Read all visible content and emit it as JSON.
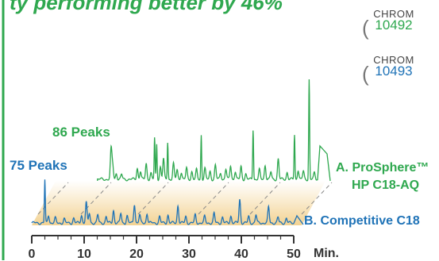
{
  "header": {
    "title_fragment": "ty performing better by 46%"
  },
  "badges": [
    {
      "prefix": "CHROM",
      "number": "10492",
      "color": "#2fa84f"
    },
    {
      "prefix": "CHROM",
      "number": "10493",
      "color": "#1f73b7"
    }
  ],
  "colors": {
    "series_a": "#2fa84f",
    "series_b": "#1f73b7",
    "frame": "#2fa84f",
    "band": "#f2d08c",
    "axis": "#333333"
  },
  "chart_data": {
    "type": "line",
    "title": "",
    "xlabel": "Min.",
    "ylabel": "",
    "xlim": [
      0,
      50
    ],
    "x_ticks": [
      "0",
      "10",
      "20",
      "30",
      "40",
      "50"
    ],
    "grid": false,
    "series": [
      {
        "name": "A. ProSphere™ HP C18-AQ",
        "label_line1": "A. ProSphere™",
        "label_line2": "HP C18-AQ",
        "peak_count_label": "86 Peaks",
        "color": "#2fa84f",
        "peaks": [
          {
            "t": 10.6,
            "h": 38
          },
          {
            "t": 10.9,
            "h": 18
          },
          {
            "t": 11.6,
            "h": 8
          },
          {
            "t": 12.6,
            "h": 6
          },
          {
            "t": 15.6,
            "h": 14
          },
          {
            "t": 16.2,
            "h": 10
          },
          {
            "t": 17.3,
            "h": 20
          },
          {
            "t": 18.2,
            "h": 8
          },
          {
            "t": 18.9,
            "h": 52
          },
          {
            "t": 19.3,
            "h": 44
          },
          {
            "t": 20.0,
            "h": 16
          },
          {
            "t": 20.6,
            "h": 26
          },
          {
            "t": 21.4,
            "h": 47
          },
          {
            "t": 22.5,
            "h": 20
          },
          {
            "t": 23.2,
            "h": 12
          },
          {
            "t": 24.0,
            "h": 9
          },
          {
            "t": 25.0,
            "h": 14
          },
          {
            "t": 26.0,
            "h": 10
          },
          {
            "t": 26.9,
            "h": 12
          },
          {
            "t": 27.8,
            "h": 56
          },
          {
            "t": 28.5,
            "h": 14
          },
          {
            "t": 29.5,
            "h": 10
          },
          {
            "t": 30.5,
            "h": 18
          },
          {
            "t": 31.5,
            "h": 8
          },
          {
            "t": 32.5,
            "h": 13
          },
          {
            "t": 33.4,
            "h": 17
          },
          {
            "t": 34.3,
            "h": 10
          },
          {
            "t": 35.4,
            "h": 16
          },
          {
            "t": 36.3,
            "h": 7
          },
          {
            "t": 37.7,
            "h": 63
          },
          {
            "t": 38.9,
            "h": 12
          },
          {
            "t": 40.0,
            "h": 18
          },
          {
            "t": 41.1,
            "h": 9
          },
          {
            "t": 42.5,
            "h": 26
          },
          {
            "t": 44.2,
            "h": 9
          },
          {
            "t": 45.6,
            "h": 56
          },
          {
            "t": 46.3,
            "h": 12
          },
          {
            "t": 47.3,
            "h": 10
          },
          {
            "t": 48.4,
            "h": 126
          },
          {
            "t": 49.4,
            "h": 8
          }
        ]
      },
      {
        "name": "B. Competitive C18",
        "label_line1": "B.  Competitive C18",
        "peak_count_label": "75 Peaks",
        "color": "#1f73b7",
        "peaks": [
          {
            "t": 2.5,
            "h": 54
          },
          {
            "t": 3.2,
            "h": 10
          },
          {
            "t": 4.5,
            "h": 6
          },
          {
            "t": 6.2,
            "h": 5
          },
          {
            "t": 8.0,
            "h": 6
          },
          {
            "t": 9.5,
            "h": 10
          },
          {
            "t": 10.4,
            "h": 26
          },
          {
            "t": 11.0,
            "h": 12
          },
          {
            "t": 12.6,
            "h": 10
          },
          {
            "t": 14.2,
            "h": 8
          },
          {
            "t": 15.6,
            "h": 16
          },
          {
            "t": 17.0,
            "h": 12
          },
          {
            "t": 18.2,
            "h": 9
          },
          {
            "t": 19.6,
            "h": 24
          },
          {
            "t": 20.6,
            "h": 10
          },
          {
            "t": 22.0,
            "h": 12
          },
          {
            "t": 24.4,
            "h": 8
          },
          {
            "t": 26.0,
            "h": 10
          },
          {
            "t": 27.9,
            "h": 22
          },
          {
            "t": 29.4,
            "h": 8
          },
          {
            "t": 31.2,
            "h": 10
          },
          {
            "t": 33.0,
            "h": 8
          },
          {
            "t": 34.8,
            "h": 12
          },
          {
            "t": 36.4,
            "h": 7
          },
          {
            "t": 38.0,
            "h": 9
          },
          {
            "t": 39.7,
            "h": 30
          },
          {
            "t": 41.4,
            "h": 8
          },
          {
            "t": 42.8,
            "h": 10
          },
          {
            "t": 45.2,
            "h": 20
          },
          {
            "t": 47.0,
            "h": 7
          },
          {
            "t": 48.6,
            "h": 6
          }
        ]
      }
    ]
  }
}
